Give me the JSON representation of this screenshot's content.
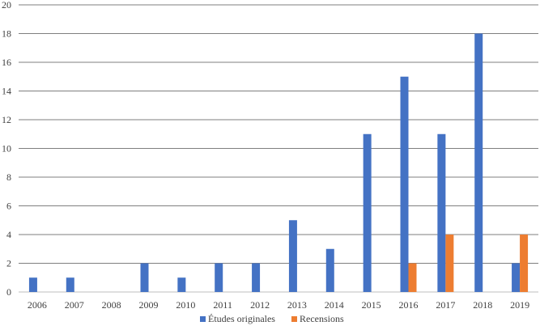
{
  "chart_data": {
    "type": "bar",
    "categories": [
      "2006",
      "2007",
      "2008",
      "2009",
      "2010",
      "2011",
      "2012",
      "2013",
      "2014",
      "2015",
      "2016",
      "2017",
      "2018",
      "2019"
    ],
    "series": [
      {
        "name": "Études originales",
        "color": "#4472C4",
        "values": [
          1,
          1,
          0,
          2,
          1,
          2,
          2,
          5,
          3,
          11,
          15,
          11,
          18,
          2
        ]
      },
      {
        "name": "Recensions",
        "color": "#ED7D31",
        "values": [
          0,
          0,
          0,
          0,
          0,
          0,
          0,
          0,
          0,
          0,
          2,
          4,
          0,
          4
        ]
      }
    ],
    "ylim": [
      0,
      20
    ],
    "yticks": [
      0,
      2,
      4,
      6,
      8,
      10,
      12,
      14,
      16,
      18,
      20
    ],
    "grid": true,
    "legend": "bottom"
  }
}
